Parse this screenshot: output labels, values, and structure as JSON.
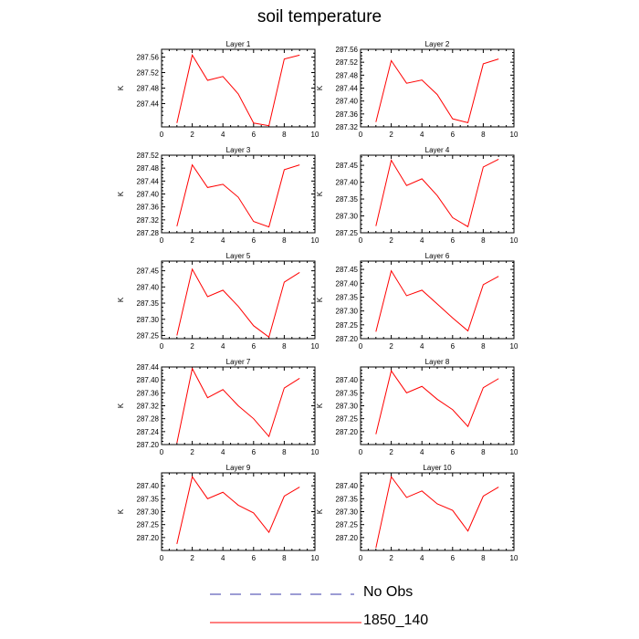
{
  "title": "soil temperature",
  "colors": {
    "model_line": "#ff0000",
    "obs_line": "#3a3aa8",
    "axis": "#000000"
  },
  "legend": [
    {
      "label": "No Obs",
      "style": "dashed",
      "color": "#3a3aa8"
    },
    {
      "label": "1850_140",
      "style": "solid",
      "color": "#ff0000"
    }
  ],
  "chart_data": [
    {
      "type": "line",
      "title": "Layer 1",
      "ylabel": "K",
      "xlabel": "",
      "xlim": [
        0,
        10
      ],
      "xticks": [
        0,
        2,
        4,
        6,
        8,
        10
      ],
      "ylim": [
        287.38,
        287.58
      ],
      "yticks": [
        "287.44",
        "287.48",
        "287.52",
        "287.56"
      ],
      "series": [
        {
          "x": [
            1,
            2,
            3,
            4,
            5,
            6,
            7,
            8,
            9
          ],
          "y": [
            287.39,
            287.565,
            287.5,
            287.51,
            287.465,
            287.39,
            287.383,
            287.555,
            287.565
          ]
        }
      ]
    },
    {
      "type": "line",
      "title": "Layer 2",
      "ylabel": "K",
      "xlabel": "",
      "xlim": [
        0,
        10
      ],
      "xticks": [
        0,
        2,
        4,
        6,
        8,
        10
      ],
      "ylim": [
        287.32,
        287.56
      ],
      "yticks": [
        "287.32",
        "287.36",
        "287.40",
        "287.44",
        "287.48",
        "287.52",
        "287.56"
      ],
      "series": [
        {
          "x": [
            1,
            2,
            3,
            4,
            5,
            6,
            7,
            8,
            9
          ],
          "y": [
            287.335,
            287.525,
            287.455,
            287.465,
            287.42,
            287.345,
            287.333,
            287.515,
            287.53
          ]
        }
      ]
    },
    {
      "type": "line",
      "title": "Layer 3",
      "ylabel": "K",
      "xlabel": "",
      "xlim": [
        0,
        10
      ],
      "xticks": [
        0,
        2,
        4,
        6,
        8,
        10
      ],
      "ylim": [
        287.28,
        287.52
      ],
      "yticks": [
        "287.28",
        "287.32",
        "287.36",
        "287.40",
        "287.44",
        "287.48",
        "287.52"
      ],
      "series": [
        {
          "x": [
            1,
            2,
            3,
            4,
            5,
            6,
            7,
            8,
            9
          ],
          "y": [
            287.3,
            287.49,
            287.42,
            287.43,
            287.39,
            287.315,
            287.298,
            287.475,
            287.49
          ]
        }
      ]
    },
    {
      "type": "line",
      "title": "Layer 4",
      "ylabel": "K",
      "xlabel": "",
      "xlim": [
        0,
        10
      ],
      "xticks": [
        0,
        2,
        4,
        6,
        8,
        10
      ],
      "ylim": [
        287.25,
        287.48
      ],
      "yticks": [
        "287.25",
        "287.30",
        "287.35",
        "287.40",
        "287.45"
      ],
      "series": [
        {
          "x": [
            1,
            2,
            3,
            4,
            5,
            6,
            7,
            8,
            9
          ],
          "y": [
            287.27,
            287.465,
            287.39,
            287.41,
            287.36,
            287.295,
            287.268,
            287.445,
            287.468
          ]
        }
      ]
    },
    {
      "type": "line",
      "title": "Layer 5",
      "ylabel": "K",
      "xlabel": "",
      "xlim": [
        0,
        10
      ],
      "xticks": [
        0,
        2,
        4,
        6,
        8,
        10
      ],
      "ylim": [
        287.24,
        287.48
      ],
      "yticks": [
        "287.25",
        "287.30",
        "287.35",
        "287.40",
        "287.45"
      ],
      "series": [
        {
          "x": [
            1,
            2,
            3,
            4,
            5,
            6,
            7,
            8,
            9
          ],
          "y": [
            287.25,
            287.455,
            287.37,
            287.39,
            287.34,
            287.28,
            287.245,
            287.415,
            287.445
          ]
        }
      ]
    },
    {
      "type": "line",
      "title": "Layer 6",
      "ylabel": "K",
      "xlabel": "",
      "xlim": [
        0,
        10
      ],
      "xticks": [
        0,
        2,
        4,
        6,
        8,
        10
      ],
      "ylim": [
        287.2,
        287.48
      ],
      "yticks": [
        "287.20",
        "287.25",
        "287.30",
        "287.35",
        "287.40",
        "287.45"
      ],
      "series": [
        {
          "x": [
            1,
            2,
            3,
            4,
            5,
            6,
            7,
            8,
            9
          ],
          "y": [
            287.225,
            287.445,
            287.355,
            287.375,
            287.325,
            287.275,
            287.228,
            287.395,
            287.425
          ]
        }
      ]
    },
    {
      "type": "line",
      "title": "Layer 7",
      "ylabel": "K",
      "xlabel": "",
      "xlim": [
        0,
        10
      ],
      "xticks": [
        0,
        2,
        4,
        6,
        8,
        10
      ],
      "ylim": [
        287.2,
        287.44
      ],
      "yticks": [
        "287.20",
        "287.24",
        "287.28",
        "287.32",
        "287.36",
        "287.40",
        "287.44"
      ],
      "series": [
        {
          "x": [
            1,
            2,
            3,
            4,
            5,
            6,
            7,
            8,
            9
          ],
          "y": [
            287.205,
            287.435,
            287.345,
            287.37,
            287.32,
            287.28,
            287.225,
            287.375,
            287.405
          ]
        }
      ]
    },
    {
      "type": "line",
      "title": "Layer 8",
      "ylabel": "K",
      "xlabel": "",
      "xlim": [
        0,
        10
      ],
      "xticks": [
        0,
        2,
        4,
        6,
        8,
        10
      ],
      "ylim": [
        287.15,
        287.45
      ],
      "yticks": [
        "287.20",
        "287.25",
        "287.30",
        "287.35",
        "287.40"
      ],
      "series": [
        {
          "x": [
            1,
            2,
            3,
            4,
            5,
            6,
            7,
            8,
            9
          ],
          "y": [
            287.19,
            287.435,
            287.35,
            287.375,
            287.325,
            287.285,
            287.22,
            287.37,
            287.405
          ]
        }
      ]
    },
    {
      "type": "line",
      "title": "Layer 9",
      "ylabel": "K",
      "xlabel": "",
      "xlim": [
        0,
        10
      ],
      "xticks": [
        0,
        2,
        4,
        6,
        8,
        10
      ],
      "ylim": [
        287.15,
        287.45
      ],
      "yticks": [
        "287.20",
        "287.25",
        "287.30",
        "287.35",
        "287.40"
      ],
      "series": [
        {
          "x": [
            1,
            2,
            3,
            4,
            5,
            6,
            7,
            8,
            9
          ],
          "y": [
            287.175,
            287.435,
            287.35,
            287.375,
            287.325,
            287.295,
            287.22,
            287.36,
            287.395
          ]
        }
      ]
    },
    {
      "type": "line",
      "title": "Layer 10",
      "ylabel": "K",
      "xlabel": "",
      "xlim": [
        0,
        10
      ],
      "xticks": [
        0,
        2,
        4,
        6,
        8,
        10
      ],
      "ylim": [
        287.15,
        287.45
      ],
      "yticks": [
        "287.20",
        "287.25",
        "287.30",
        "287.35",
        "287.40"
      ],
      "series": [
        {
          "x": [
            1,
            2,
            3,
            4,
            5,
            6,
            7,
            8,
            9
          ],
          "y": [
            287.16,
            287.435,
            287.355,
            287.38,
            287.33,
            287.305,
            287.225,
            287.36,
            287.395
          ]
        }
      ]
    }
  ]
}
